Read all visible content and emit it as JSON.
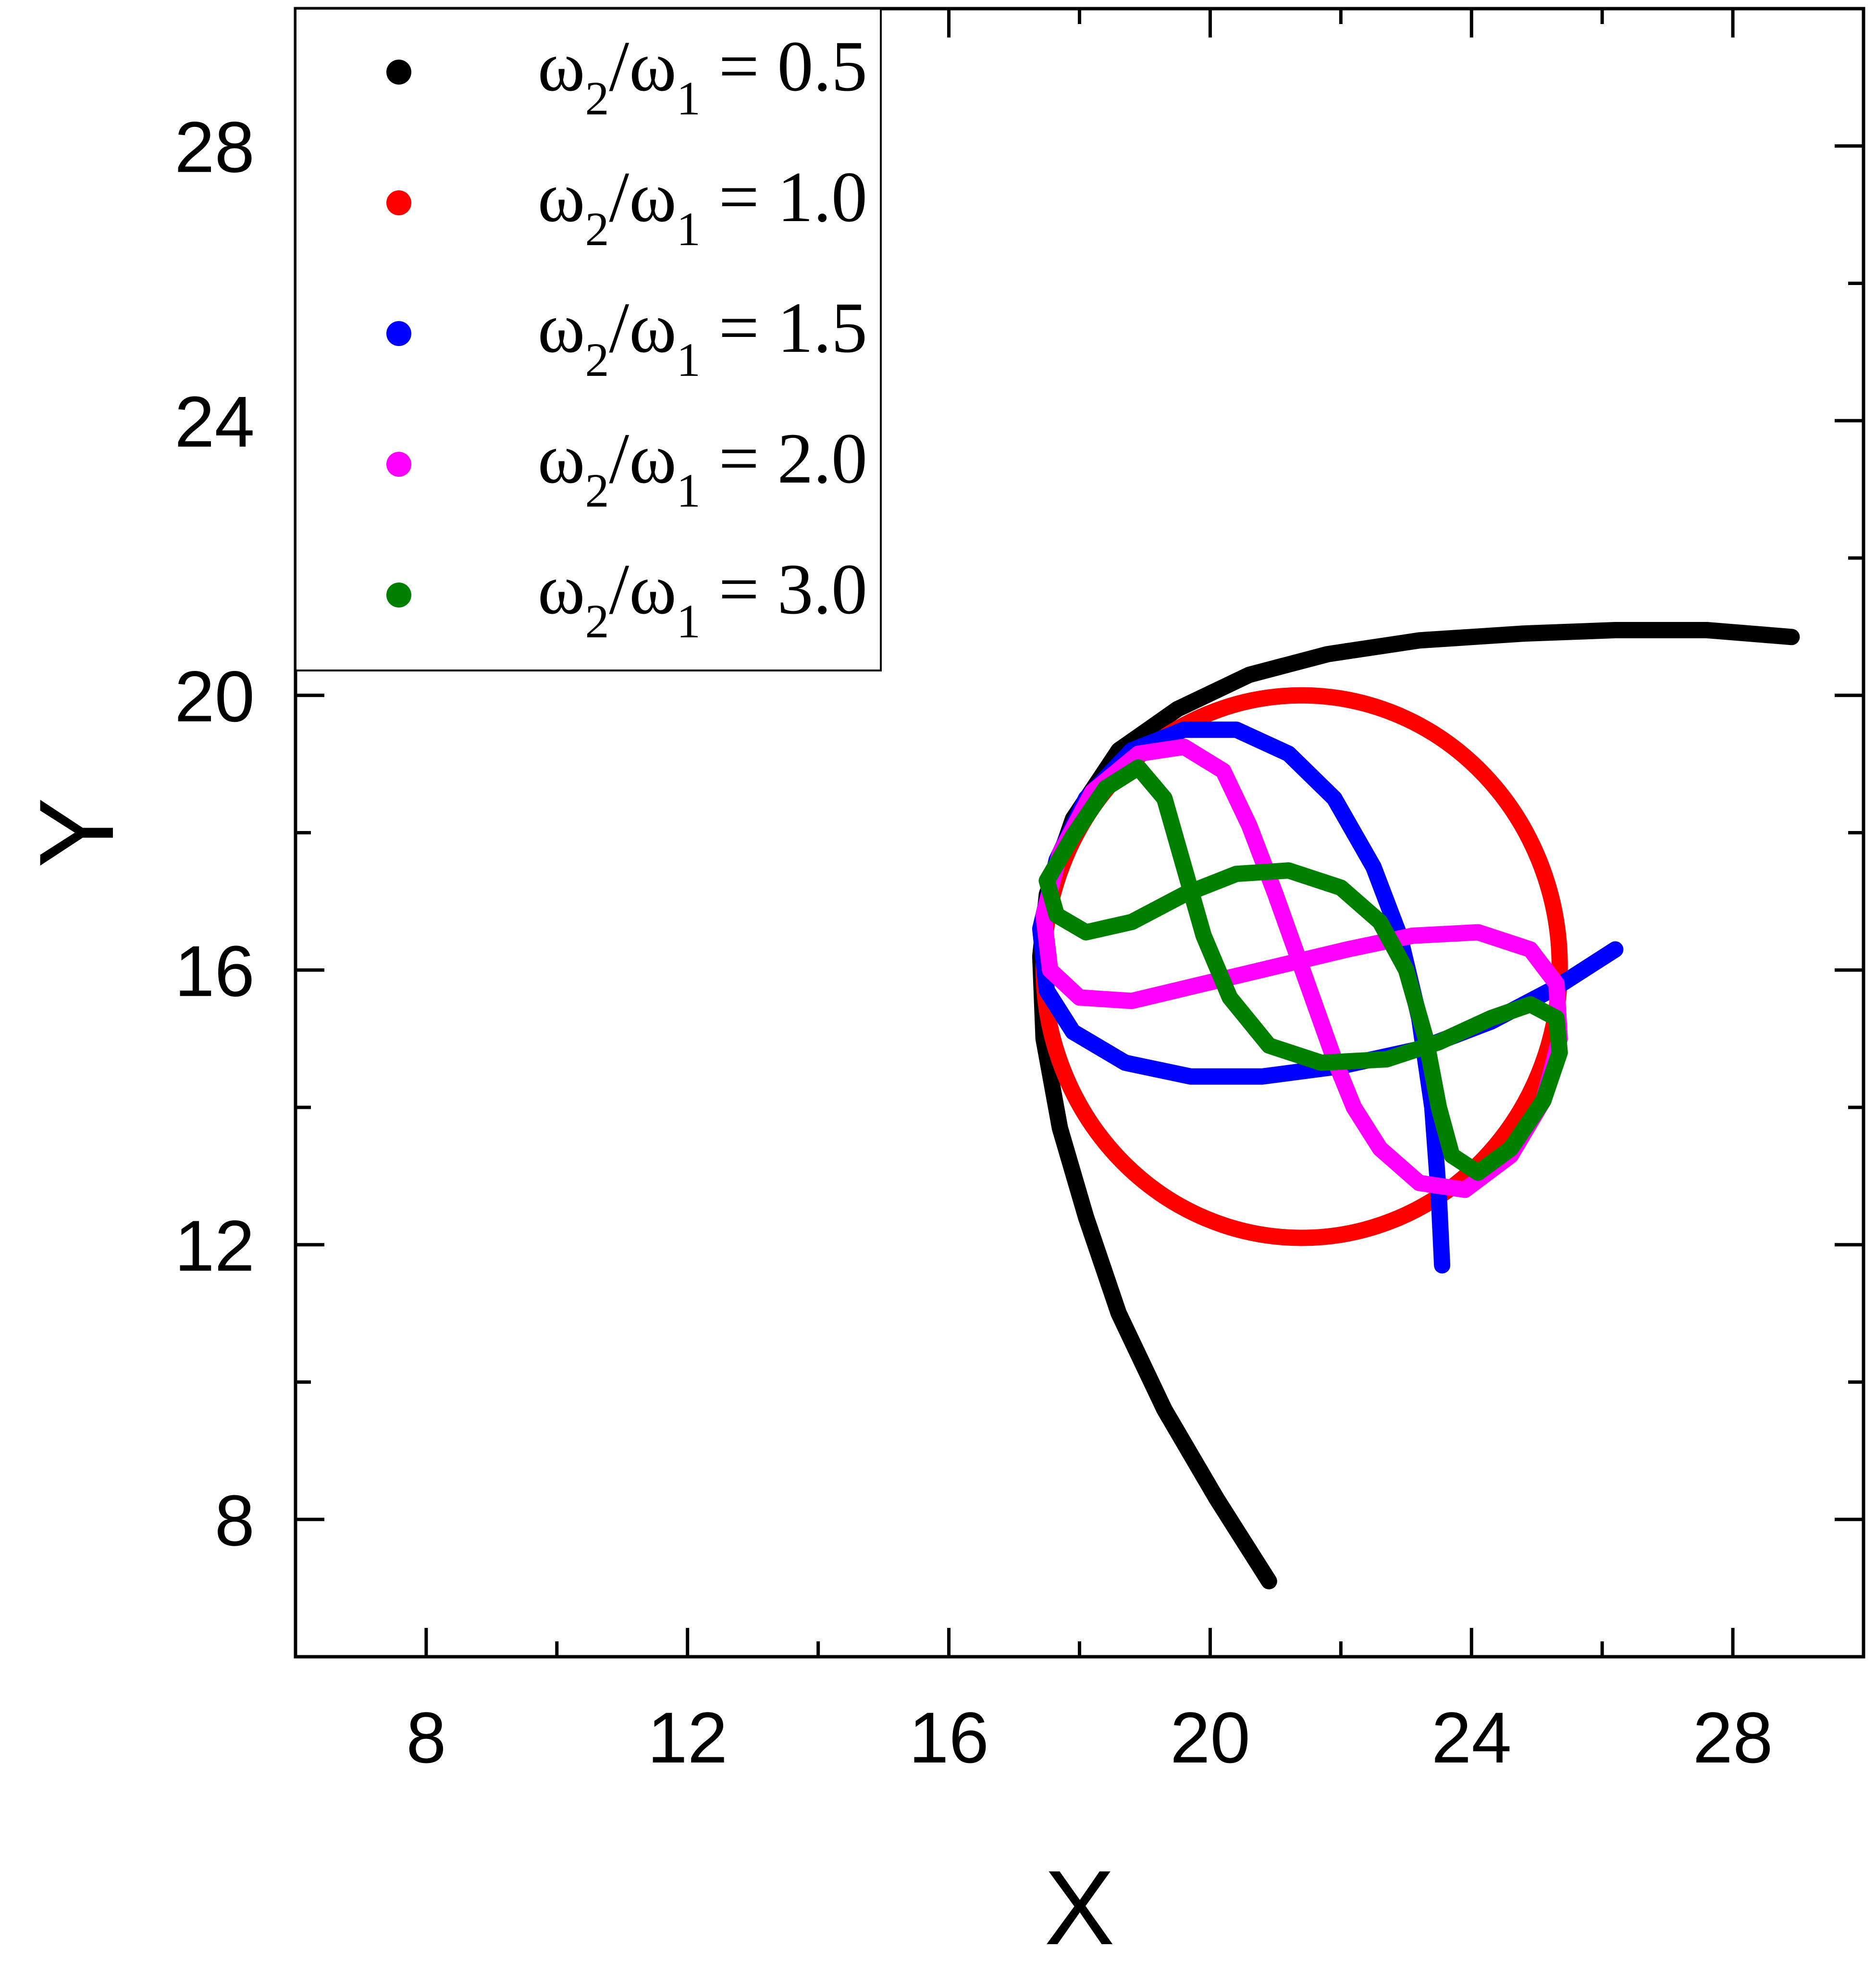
{
  "chart_data": {
    "type": "line",
    "title": "",
    "xlabel": "X",
    "ylabel": "Y",
    "xlim": [
      6,
      30
    ],
    "ylim": [
      6,
      30
    ],
    "x_ticks": [
      8,
      12,
      16,
      20,
      24,
      28
    ],
    "y_ticks": [
      8,
      12,
      16,
      20,
      24,
      28
    ],
    "x_tick_labels": [
      "8",
      "12",
      "16",
      "20",
      "24",
      "28"
    ],
    "y_tick_labels": [
      "8",
      "12",
      "16",
      "20",
      "24",
      "28"
    ],
    "minor_ticks": true,
    "grid": false,
    "legend_position": "top-left",
    "legend_label_parts": {
      "omega": "ω",
      "sub_num": "2",
      "slash": "/",
      "sub_den": "1",
      "equals": " = "
    },
    "series": [
      {
        "name": "ω2/ω1 = 0.5",
        "ratio_text": "0.5",
        "color": "#000000",
        "points": [
          [
            20.9,
            7.1
          ],
          [
            20.1,
            8.3
          ],
          [
            19.3,
            9.6
          ],
          [
            18.6,
            11.0
          ],
          [
            18.1,
            12.4
          ],
          [
            17.7,
            13.7
          ],
          [
            17.45,
            15.0
          ],
          [
            17.4,
            16.2
          ],
          [
            17.5,
            17.1
          ],
          [
            17.9,
            18.2
          ],
          [
            18.6,
            19.2
          ],
          [
            19.5,
            19.8
          ],
          [
            20.6,
            20.3
          ],
          [
            21.8,
            20.6
          ],
          [
            23.2,
            20.8
          ],
          [
            24.8,
            20.9
          ],
          [
            26.2,
            20.95
          ],
          [
            27.6,
            20.95
          ],
          [
            28.9,
            20.85
          ]
        ]
      },
      {
        "name": "ω2/ω1 = 1.0",
        "ratio_text": "1.0",
        "color": "#ff0000",
        "shape": "circle",
        "center": [
          21.4,
          16.05
        ],
        "radius": 3.95
      },
      {
        "name": "ω2/ω1 = 1.5",
        "ratio_text": "1.5",
        "color": "#0000ff",
        "points": [
          [
            26.2,
            16.3
          ],
          [
            25.3,
            15.75
          ],
          [
            24.3,
            15.25
          ],
          [
            23.2,
            14.85
          ],
          [
            22.0,
            14.6
          ],
          [
            20.8,
            14.45
          ],
          [
            19.7,
            14.45
          ],
          [
            18.7,
            14.65
          ],
          [
            17.9,
            15.1
          ],
          [
            17.5,
            15.7
          ],
          [
            17.4,
            16.6
          ],
          [
            17.65,
            17.6
          ],
          [
            18.1,
            18.5
          ],
          [
            18.8,
            19.2
          ],
          [
            19.6,
            19.5
          ],
          [
            20.4,
            19.5
          ],
          [
            21.2,
            19.15
          ],
          [
            21.9,
            18.5
          ],
          [
            22.5,
            17.5
          ],
          [
            22.9,
            16.5
          ],
          [
            23.2,
            15.3
          ],
          [
            23.4,
            14.0
          ],
          [
            23.5,
            12.7
          ],
          [
            23.55,
            11.7
          ]
        ]
      },
      {
        "name": "ω2/ω1 = 2.0",
        "ratio_text": "2.0",
        "color": "#ff00ff",
        "points": [
          [
            21.0,
            17.1
          ],
          [
            21.3,
            16.3
          ],
          [
            21.6,
            15.5
          ],
          [
            21.9,
            14.7
          ],
          [
            22.2,
            14.0
          ],
          [
            22.6,
            13.4
          ],
          [
            23.2,
            12.9
          ],
          [
            23.9,
            12.8
          ],
          [
            24.6,
            13.3
          ],
          [
            25.1,
            14.1
          ],
          [
            25.35,
            15.0
          ],
          [
            25.3,
            15.8
          ],
          [
            24.9,
            16.3
          ],
          [
            24.1,
            16.55
          ],
          [
            23.1,
            16.5
          ],
          [
            22.1,
            16.3
          ],
          [
            21.0,
            16.05
          ],
          [
            19.9,
            15.8
          ],
          [
            18.8,
            15.55
          ],
          [
            18.0,
            15.6
          ],
          [
            17.55,
            16.0
          ],
          [
            17.45,
            16.8
          ],
          [
            17.7,
            17.7
          ],
          [
            18.2,
            18.6
          ],
          [
            18.9,
            19.15
          ],
          [
            19.6,
            19.25
          ],
          [
            20.2,
            18.9
          ],
          [
            20.6,
            18.1
          ],
          [
            21.0,
            17.1
          ]
        ]
      },
      {
        "name": "ω2/ω1 = 3.0",
        "ratio_text": "3.0",
        "color": "#008000",
        "points": [
          [
            17.5,
            17.3
          ],
          [
            17.65,
            16.8
          ],
          [
            18.1,
            16.55
          ],
          [
            18.8,
            16.7
          ],
          [
            19.6,
            17.1
          ],
          [
            20.4,
            17.4
          ],
          [
            21.2,
            17.45
          ],
          [
            22.0,
            17.2
          ],
          [
            22.6,
            16.7
          ],
          [
            23.0,
            16.0
          ],
          [
            23.3,
            15.0
          ],
          [
            23.5,
            14.0
          ],
          [
            23.7,
            13.3
          ],
          [
            24.1,
            13.05
          ],
          [
            24.6,
            13.4
          ],
          [
            25.1,
            14.1
          ],
          [
            25.35,
            14.8
          ],
          [
            25.3,
            15.3
          ],
          [
            24.9,
            15.5
          ],
          [
            24.3,
            15.3
          ],
          [
            23.5,
            14.95
          ],
          [
            22.7,
            14.7
          ],
          [
            21.7,
            14.65
          ],
          [
            20.9,
            14.9
          ],
          [
            20.3,
            15.6
          ],
          [
            19.9,
            16.5
          ],
          [
            19.6,
            17.5
          ],
          [
            19.3,
            18.5
          ],
          [
            18.9,
            18.95
          ],
          [
            18.4,
            18.65
          ],
          [
            17.9,
            17.95
          ],
          [
            17.5,
            17.3
          ]
        ]
      }
    ]
  }
}
